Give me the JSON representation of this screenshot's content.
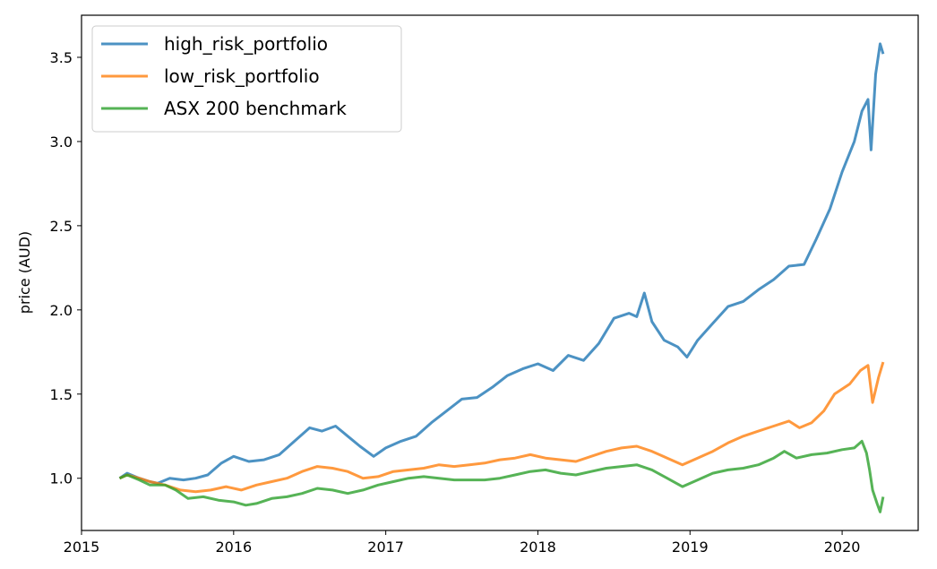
{
  "chart_data": {
    "type": "line",
    "title": "",
    "xlabel": "",
    "ylabel": "price (AUD)",
    "xlim": [
      2015.0,
      2020.5
    ],
    "ylim": [
      0.69,
      3.75
    ],
    "grid": false,
    "legend_position": "top-left",
    "x_ticks": [
      "2015",
      "2016",
      "2017",
      "2018",
      "2019",
      "2020"
    ],
    "y_ticks": [
      "1.0",
      "1.5",
      "2.0",
      "2.5",
      "3.0",
      "3.5"
    ],
    "series": [
      {
        "name": "high_risk_portfolio",
        "color": "#1f77b4",
        "points": [
          [
            2015.25,
            1.0
          ],
          [
            2015.3,
            1.03
          ],
          [
            2015.38,
            1.0
          ],
          [
            2015.45,
            0.98
          ],
          [
            2015.5,
            0.97
          ],
          [
            2015.58,
            1.0
          ],
          [
            2015.67,
            0.99
          ],
          [
            2015.75,
            1.0
          ],
          [
            2015.83,
            1.02
          ],
          [
            2015.92,
            1.09
          ],
          [
            2016.0,
            1.13
          ],
          [
            2016.1,
            1.1
          ],
          [
            2016.2,
            1.11
          ],
          [
            2016.3,
            1.14
          ],
          [
            2016.4,
            1.22
          ],
          [
            2016.5,
            1.3
          ],
          [
            2016.58,
            1.28
          ],
          [
            2016.67,
            1.31
          ],
          [
            2016.75,
            1.25
          ],
          [
            2016.83,
            1.19
          ],
          [
            2016.92,
            1.13
          ],
          [
            2017.0,
            1.18
          ],
          [
            2017.1,
            1.22
          ],
          [
            2017.2,
            1.25
          ],
          [
            2017.3,
            1.33
          ],
          [
            2017.4,
            1.4
          ],
          [
            2017.5,
            1.47
          ],
          [
            2017.6,
            1.48
          ],
          [
            2017.7,
            1.54
          ],
          [
            2017.8,
            1.61
          ],
          [
            2017.9,
            1.65
          ],
          [
            2018.0,
            1.68
          ],
          [
            2018.1,
            1.64
          ],
          [
            2018.2,
            1.73
          ],
          [
            2018.3,
            1.7
          ],
          [
            2018.4,
            1.8
          ],
          [
            2018.5,
            1.95
          ],
          [
            2018.6,
            1.98
          ],
          [
            2018.65,
            1.96
          ],
          [
            2018.7,
            2.1
          ],
          [
            2018.75,
            1.93
          ],
          [
            2018.83,
            1.82
          ],
          [
            2018.92,
            1.78
          ],
          [
            2018.98,
            1.72
          ],
          [
            2019.05,
            1.82
          ],
          [
            2019.15,
            1.92
          ],
          [
            2019.25,
            2.02
          ],
          [
            2019.35,
            2.05
          ],
          [
            2019.45,
            2.12
          ],
          [
            2019.55,
            2.18
          ],
          [
            2019.65,
            2.26
          ],
          [
            2019.75,
            2.27
          ],
          [
            2019.83,
            2.42
          ],
          [
            2019.92,
            2.6
          ],
          [
            2020.0,
            2.82
          ],
          [
            2020.08,
            3.0
          ],
          [
            2020.13,
            3.18
          ],
          [
            2020.17,
            3.25
          ],
          [
            2020.19,
            2.95
          ],
          [
            2020.22,
            3.4
          ],
          [
            2020.25,
            3.58
          ],
          [
            2020.27,
            3.52
          ]
        ]
      },
      {
        "name": "low_risk_portfolio",
        "color": "#ff7f0e",
        "points": [
          [
            2015.25,
            1.0
          ],
          [
            2015.3,
            1.02
          ],
          [
            2015.38,
            1.0
          ],
          [
            2015.45,
            0.98
          ],
          [
            2015.55,
            0.96
          ],
          [
            2015.65,
            0.93
          ],
          [
            2015.75,
            0.92
          ],
          [
            2015.85,
            0.93
          ],
          [
            2015.95,
            0.95
          ],
          [
            2016.05,
            0.93
          ],
          [
            2016.15,
            0.96
          ],
          [
            2016.25,
            0.98
          ],
          [
            2016.35,
            1.0
          ],
          [
            2016.45,
            1.04
          ],
          [
            2016.55,
            1.07
          ],
          [
            2016.65,
            1.06
          ],
          [
            2016.75,
            1.04
          ],
          [
            2016.85,
            1.0
          ],
          [
            2016.95,
            1.01
          ],
          [
            2017.05,
            1.04
          ],
          [
            2017.15,
            1.05
          ],
          [
            2017.25,
            1.06
          ],
          [
            2017.35,
            1.08
          ],
          [
            2017.45,
            1.07
          ],
          [
            2017.55,
            1.08
          ],
          [
            2017.65,
            1.09
          ],
          [
            2017.75,
            1.11
          ],
          [
            2017.85,
            1.12
          ],
          [
            2017.95,
            1.14
          ],
          [
            2018.05,
            1.12
          ],
          [
            2018.15,
            1.11
          ],
          [
            2018.25,
            1.1
          ],
          [
            2018.35,
            1.13
          ],
          [
            2018.45,
            1.16
          ],
          [
            2018.55,
            1.18
          ],
          [
            2018.65,
            1.19
          ],
          [
            2018.75,
            1.16
          ],
          [
            2018.85,
            1.12
          ],
          [
            2018.95,
            1.08
          ],
          [
            2019.05,
            1.12
          ],
          [
            2019.15,
            1.16
          ],
          [
            2019.25,
            1.21
          ],
          [
            2019.35,
            1.25
          ],
          [
            2019.45,
            1.28
          ],
          [
            2019.55,
            1.31
          ],
          [
            2019.65,
            1.34
          ],
          [
            2019.72,
            1.3
          ],
          [
            2019.8,
            1.33
          ],
          [
            2019.88,
            1.4
          ],
          [
            2019.95,
            1.5
          ],
          [
            2020.05,
            1.56
          ],
          [
            2020.12,
            1.64
          ],
          [
            2020.17,
            1.67
          ],
          [
            2020.2,
            1.45
          ],
          [
            2020.24,
            1.6
          ],
          [
            2020.27,
            1.69
          ]
        ]
      },
      {
        "name": "ASX 200 benchmark",
        "color": "#2ca02c",
        "points": [
          [
            2015.25,
            1.0
          ],
          [
            2015.3,
            1.02
          ],
          [
            2015.38,
            0.99
          ],
          [
            2015.45,
            0.96
          ],
          [
            2015.55,
            0.96
          ],
          [
            2015.62,
            0.93
          ],
          [
            2015.7,
            0.88
          ],
          [
            2015.8,
            0.89
          ],
          [
            2015.9,
            0.87
          ],
          [
            2016.0,
            0.86
          ],
          [
            2016.08,
            0.84
          ],
          [
            2016.15,
            0.85
          ],
          [
            2016.25,
            0.88
          ],
          [
            2016.35,
            0.89
          ],
          [
            2016.45,
            0.91
          ],
          [
            2016.55,
            0.94
          ],
          [
            2016.65,
            0.93
          ],
          [
            2016.75,
            0.91
          ],
          [
            2016.85,
            0.93
          ],
          [
            2016.95,
            0.96
          ],
          [
            2017.05,
            0.98
          ],
          [
            2017.15,
            1.0
          ],
          [
            2017.25,
            1.01
          ],
          [
            2017.35,
            1.0
          ],
          [
            2017.45,
            0.99
          ],
          [
            2017.55,
            0.99
          ],
          [
            2017.65,
            0.99
          ],
          [
            2017.75,
            1.0
          ],
          [
            2017.85,
            1.02
          ],
          [
            2017.95,
            1.04
          ],
          [
            2018.05,
            1.05
          ],
          [
            2018.15,
            1.03
          ],
          [
            2018.25,
            1.02
          ],
          [
            2018.35,
            1.04
          ],
          [
            2018.45,
            1.06
          ],
          [
            2018.55,
            1.07
          ],
          [
            2018.65,
            1.08
          ],
          [
            2018.75,
            1.05
          ],
          [
            2018.85,
            1.0
          ],
          [
            2018.95,
            0.95
          ],
          [
            2019.05,
            0.99
          ],
          [
            2019.15,
            1.03
          ],
          [
            2019.25,
            1.05
          ],
          [
            2019.35,
            1.06
          ],
          [
            2019.45,
            1.08
          ],
          [
            2019.55,
            1.12
          ],
          [
            2019.62,
            1.16
          ],
          [
            2019.7,
            1.12
          ],
          [
            2019.8,
            1.14
          ],
          [
            2019.9,
            1.15
          ],
          [
            2020.0,
            1.17
          ],
          [
            2020.08,
            1.18
          ],
          [
            2020.13,
            1.22
          ],
          [
            2020.16,
            1.15
          ],
          [
            2020.18,
            1.05
          ],
          [
            2020.2,
            0.93
          ],
          [
            2020.23,
            0.85
          ],
          [
            2020.25,
            0.8
          ],
          [
            2020.27,
            0.89
          ]
        ]
      }
    ]
  }
}
